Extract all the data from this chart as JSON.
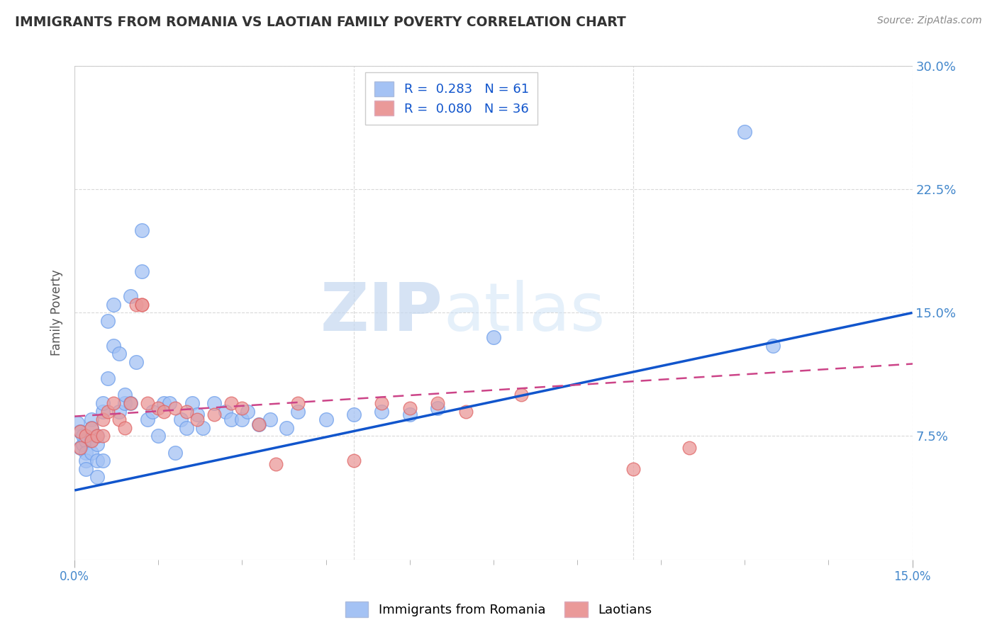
{
  "title": "IMMIGRANTS FROM ROMANIA VS LAOTIAN FAMILY POVERTY CORRELATION CHART",
  "source": "Source: ZipAtlas.com",
  "ylabel": "Family Poverty",
  "xlim": [
    0,
    0.15
  ],
  "ylim": [
    0,
    0.3
  ],
  "xtick_positions": [
    0.0,
    0.15
  ],
  "xtick_labels": [
    "0.0%",
    "15.0%"
  ],
  "ytick_labels_right": [
    "7.5%",
    "15.0%",
    "22.5%",
    "30.0%"
  ],
  "ytick_positions_right": [
    0.075,
    0.15,
    0.225,
    0.3
  ],
  "romania_R": 0.283,
  "romania_N": 61,
  "laotian_R": 0.08,
  "laotian_N": 36,
  "blue_color": "#a4c2f4",
  "pink_color": "#ea9999",
  "blue_scatter_edge": "#6d9eeb",
  "pink_scatter_edge": "#e06666",
  "blue_line_color": "#1155cc",
  "pink_line_color": "#cc4488",
  "romania_x": [
    0.0005,
    0.001,
    0.001,
    0.0015,
    0.0015,
    0.002,
    0.002,
    0.002,
    0.002,
    0.003,
    0.003,
    0.003,
    0.003,
    0.004,
    0.004,
    0.004,
    0.004,
    0.005,
    0.005,
    0.005,
    0.006,
    0.006,
    0.007,
    0.007,
    0.008,
    0.008,
    0.009,
    0.009,
    0.01,
    0.01,
    0.011,
    0.012,
    0.012,
    0.013,
    0.014,
    0.015,
    0.016,
    0.017,
    0.018,
    0.019,
    0.02,
    0.021,
    0.022,
    0.023,
    0.025,
    0.027,
    0.028,
    0.03,
    0.031,
    0.033,
    0.035,
    0.038,
    0.04,
    0.045,
    0.05,
    0.055,
    0.06,
    0.065,
    0.075,
    0.12,
    0.125
  ],
  "romania_y": [
    0.083,
    0.078,
    0.068,
    0.07,
    0.075,
    0.072,
    0.065,
    0.06,
    0.055,
    0.085,
    0.08,
    0.073,
    0.065,
    0.07,
    0.075,
    0.06,
    0.05,
    0.06,
    0.09,
    0.095,
    0.11,
    0.145,
    0.155,
    0.13,
    0.125,
    0.09,
    0.095,
    0.1,
    0.095,
    0.16,
    0.12,
    0.175,
    0.2,
    0.085,
    0.09,
    0.075,
    0.095,
    0.095,
    0.065,
    0.085,
    0.08,
    0.095,
    0.088,
    0.08,
    0.095,
    0.09,
    0.085,
    0.085,
    0.09,
    0.082,
    0.085,
    0.08,
    0.09,
    0.085,
    0.088,
    0.09,
    0.088,
    0.092,
    0.135,
    0.26,
    0.13
  ],
  "laotian_x": [
    0.001,
    0.001,
    0.002,
    0.003,
    0.003,
    0.004,
    0.005,
    0.005,
    0.006,
    0.007,
    0.008,
    0.009,
    0.01,
    0.011,
    0.012,
    0.012,
    0.013,
    0.015,
    0.016,
    0.018,
    0.02,
    0.022,
    0.025,
    0.028,
    0.03,
    0.033,
    0.036,
    0.04,
    0.05,
    0.055,
    0.06,
    0.065,
    0.07,
    0.08,
    0.1,
    0.11
  ],
  "laotian_y": [
    0.078,
    0.068,
    0.075,
    0.08,
    0.072,
    0.075,
    0.085,
    0.075,
    0.09,
    0.095,
    0.085,
    0.08,
    0.095,
    0.155,
    0.155,
    0.155,
    0.095,
    0.092,
    0.09,
    0.092,
    0.09,
    0.085,
    0.088,
    0.095,
    0.092,
    0.082,
    0.058,
    0.095,
    0.06,
    0.095,
    0.092,
    0.095,
    0.09,
    0.1,
    0.055,
    0.068
  ],
  "watermark_zip": "ZIP",
  "watermark_atlas": "atlas",
  "background_color": "#ffffff",
  "grid_color": "#d9d9d9",
  "blue_line_start_y": 0.042,
  "blue_line_end_y": 0.15,
  "pink_line_start_y": 0.087,
  "pink_line_end_y": 0.115
}
